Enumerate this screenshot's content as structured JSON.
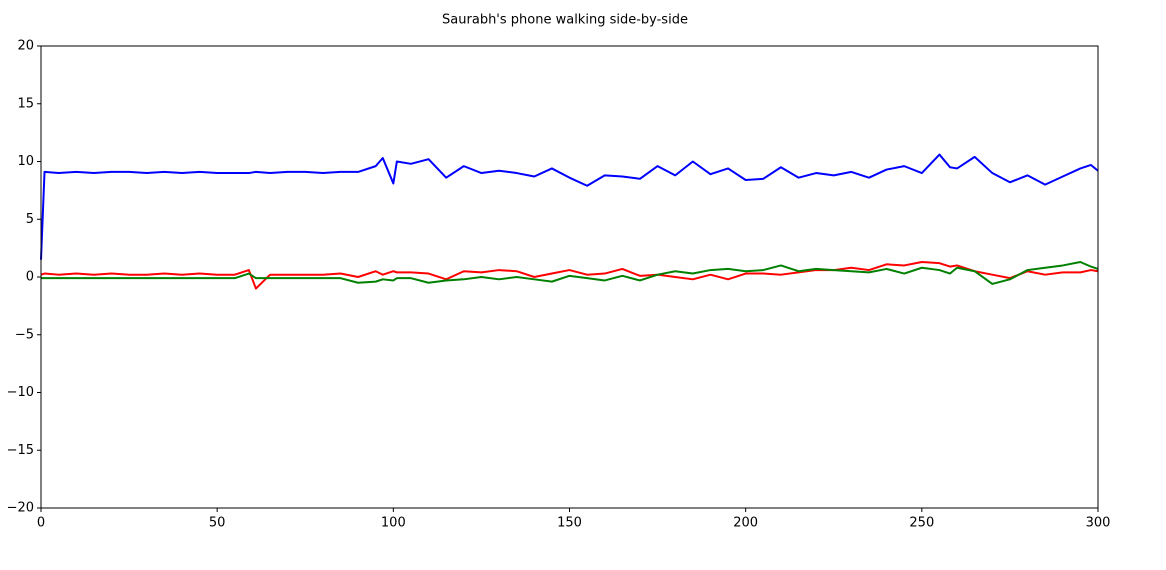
{
  "chart_data": {
    "type": "line",
    "title": "Saurabh's phone walking side-by-side",
    "x": [
      0,
      1,
      5,
      10,
      15,
      20,
      25,
      30,
      35,
      40,
      45,
      50,
      55,
      59,
      61,
      65,
      70,
      75,
      80,
      85,
      90,
      95,
      97,
      100,
      101,
      105,
      110,
      115,
      120,
      125,
      130,
      135,
      140,
      145,
      150,
      155,
      160,
      165,
      170,
      175,
      180,
      185,
      190,
      195,
      200,
      205,
      210,
      215,
      220,
      225,
      230,
      235,
      240,
      245,
      250,
      255,
      258,
      260,
      265,
      270,
      275,
      280,
      285,
      290,
      295,
      298,
      300
    ],
    "series": [
      {
        "color": "#0000ff",
        "values": [
          1.5,
          9.1,
          9.0,
          9.1,
          9.0,
          9.1,
          9.1,
          9.0,
          9.1,
          9.0,
          9.1,
          9.0,
          9.0,
          9.0,
          9.1,
          9.0,
          9.1,
          9.1,
          9.0,
          9.1,
          9.1,
          9.6,
          10.3,
          8.1,
          10.0,
          9.8,
          10.2,
          8.6,
          9.6,
          9.0,
          9.2,
          9.0,
          8.7,
          9.4,
          8.6,
          7.9,
          8.8,
          8.7,
          8.5,
          9.6,
          8.8,
          10.0,
          8.9,
          9.4,
          8.4,
          8.5,
          9.5,
          8.6,
          9.0,
          8.8,
          9.1,
          8.6,
          9.3,
          9.6,
          9.0,
          10.6,
          9.5,
          9.4,
          10.4,
          9.0,
          8.2,
          8.8,
          8.0,
          8.7,
          9.4,
          9.7,
          9.2
        ]
      },
      {
        "color": "#ff0000",
        "values": [
          0.2,
          0.3,
          0.2,
          0.3,
          0.2,
          0.3,
          0.2,
          0.2,
          0.3,
          0.2,
          0.3,
          0.2,
          0.2,
          0.6,
          -1.0,
          0.2,
          0.2,
          0.2,
          0.2,
          0.3,
          0.0,
          0.5,
          0.2,
          0.5,
          0.4,
          0.4,
          0.3,
          -0.2,
          0.5,
          0.4,
          0.6,
          0.5,
          0.0,
          0.3,
          0.6,
          0.2,
          0.3,
          0.7,
          0.1,
          0.2,
          0.0,
          -0.2,
          0.2,
          -0.2,
          0.3,
          0.3,
          0.2,
          0.4,
          0.6,
          0.6,
          0.8,
          0.6,
          1.1,
          1.0,
          1.3,
          1.2,
          0.9,
          1.0,
          0.5,
          0.2,
          -0.1,
          0.5,
          0.2,
          0.4,
          0.4,
          0.6,
          0.5
        ]
      },
      {
        "color": "#008000",
        "values": [
          -0.1,
          -0.1,
          -0.1,
          -0.1,
          -0.1,
          -0.1,
          -0.1,
          -0.1,
          -0.1,
          -0.1,
          -0.1,
          -0.1,
          -0.1,
          0.3,
          -0.1,
          -0.1,
          -0.1,
          -0.1,
          -0.1,
          -0.1,
          -0.5,
          -0.4,
          -0.2,
          -0.3,
          -0.1,
          -0.1,
          -0.5,
          -0.3,
          -0.2,
          0.0,
          -0.2,
          0.0,
          -0.2,
          -0.4,
          0.1,
          -0.1,
          -0.3,
          0.1,
          -0.3,
          0.2,
          0.5,
          0.3,
          0.6,
          0.7,
          0.5,
          0.6,
          1.0,
          0.5,
          0.7,
          0.6,
          0.5,
          0.4,
          0.7,
          0.3,
          0.8,
          0.6,
          0.3,
          0.8,
          0.5,
          -0.6,
          -0.2,
          0.6,
          0.8,
          1.0,
          1.3,
          0.9,
          0.7
        ]
      }
    ],
    "xlim": [
      0,
      300
    ],
    "xticks": [
      0,
      50,
      100,
      150,
      200,
      250,
      300
    ],
    "ylim": [
      -20,
      20
    ],
    "yticks": [
      {
        "value": -20,
        "label": "−20"
      },
      {
        "value": -15,
        "label": "−15"
      },
      {
        "value": -10,
        "label": "−10"
      },
      {
        "value": -5,
        "label": "−5"
      },
      0,
      5,
      10,
      15,
      20
    ],
    "grid": false
  }
}
